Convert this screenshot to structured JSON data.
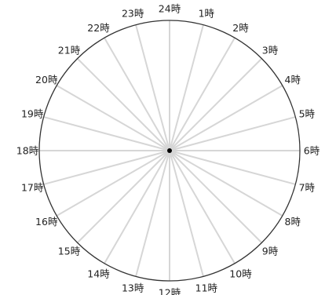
{
  "diagram": {
    "type": "24-hour-clock-face",
    "hour_labels": [
      "24時",
      "1時",
      "2時",
      "3時",
      "4時",
      "5時",
      "6時",
      "7時",
      "8時",
      "9時",
      "10時",
      "11時",
      "12時",
      "13時",
      "14時",
      "15時",
      "16時",
      "17時",
      "18時",
      "19時",
      "20時",
      "21時",
      "22時",
      "23時"
    ],
    "colors": {
      "background": "#ffffff",
      "circle_outline": "#333333",
      "spokes": "#d6d6d6",
      "center_dot": "#000000",
      "label_text": "#222222"
    }
  }
}
